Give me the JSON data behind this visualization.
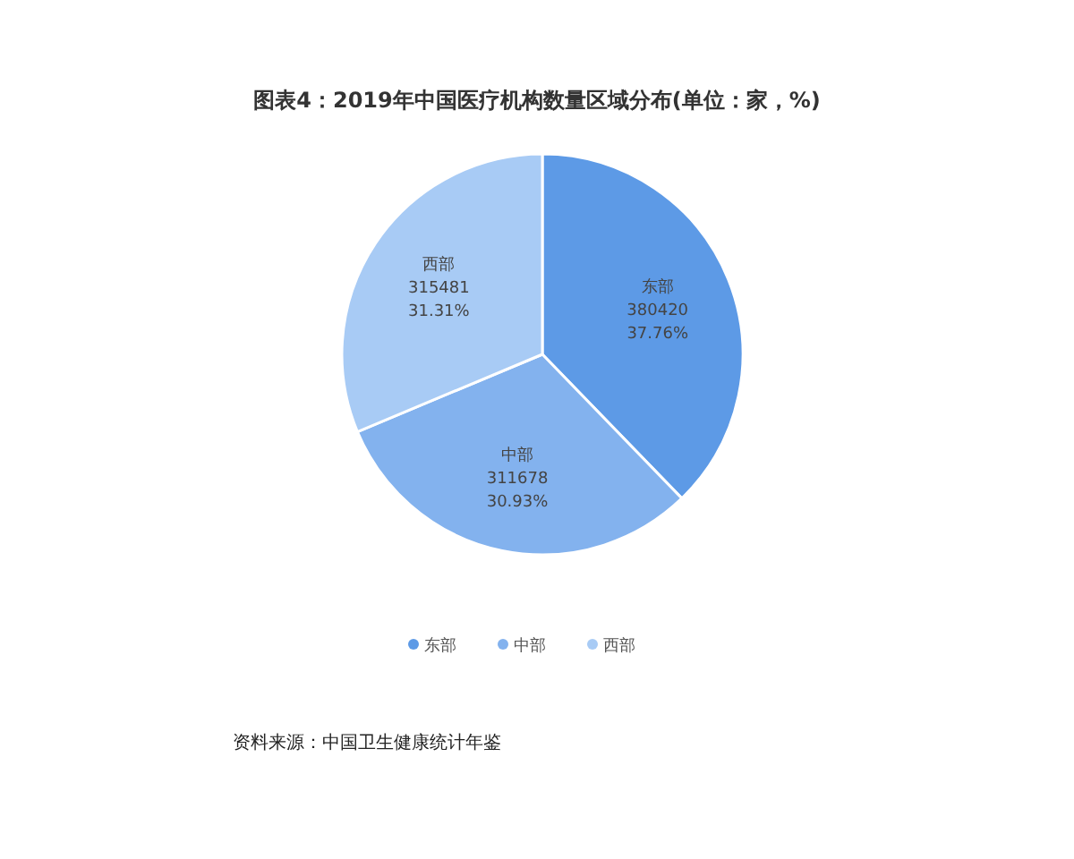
{
  "chart_data": {
    "type": "pie",
    "title": "图表4：2019年中国医疗机构数量区域分布(单位：家，%)",
    "categories": [
      "东部",
      "中部",
      "西部"
    ],
    "values": [
      380420,
      311678,
      315481
    ],
    "value_labels": [
      "380420\n37.76%",
      "311678\n30.93%",
      "315481\n31.31%"
    ],
    "colors": [
      "#5d9ae6",
      "#83b2ee",
      "#a8cbf5"
    ],
    "legend": "bottom",
    "annotations": [
      "资料来源：中国卫生健康统计年鉴"
    ]
  }
}
